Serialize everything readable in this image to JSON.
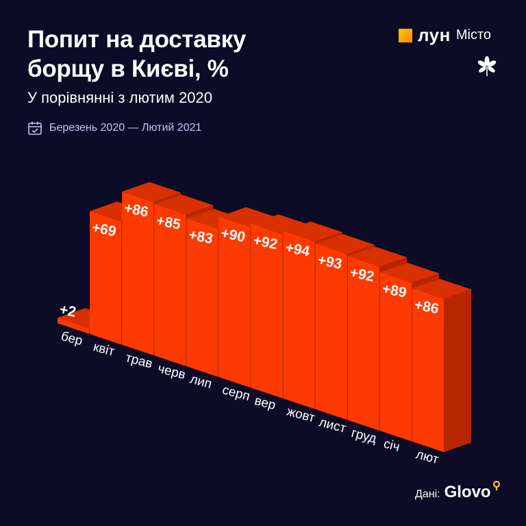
{
  "header": {
    "title": "Попит на доставку борщу в Києві, %",
    "subtitle": "У порівнянні з лютим 2020",
    "period": "Березень 2020 — Лютий 2021",
    "period_icon": "calendar-check-icon"
  },
  "logo": {
    "brand": "лун",
    "product": "Місто",
    "mark_icon": "chestnut-leaf-icon"
  },
  "source": {
    "label": "Дані:",
    "name": "Glovo"
  },
  "colors": {
    "background": "#0d0c27",
    "bar_front": "#ff3a00",
    "bar_top": "#d93000",
    "bar_side": "#b82600",
    "accent": "#ffb000"
  },
  "chart_data": {
    "type": "bar",
    "style": "3d",
    "categories": [
      "бер",
      "квіт",
      "трав",
      "черв",
      "лип",
      "серп",
      "вер",
      "жовт",
      "лист",
      "груд",
      "січ",
      "лют"
    ],
    "values": [
      2,
      69,
      86,
      85,
      83,
      90,
      92,
      94,
      93,
      92,
      89,
      86
    ],
    "labels": [
      "+2",
      "+69",
      "+86",
      "+85",
      "+83",
      "+90",
      "+92",
      "+94",
      "+93",
      "+92",
      "+89",
      "+86"
    ],
    "grid": false
  }
}
